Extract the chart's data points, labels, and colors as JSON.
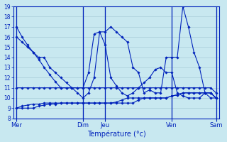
{
  "xlabel": "Température (°c)",
  "background_color": "#c8e8f0",
  "grid_color": "#a8ccd8",
  "line_color": "#0022bb",
  "tick_label_color": "#0022bb",
  "xlabel_color": "#0022bb",
  "ylim": [
    8,
    19
  ],
  "yticks": [
    8,
    9,
    10,
    11,
    12,
    13,
    14,
    15,
    16,
    17,
    18,
    19
  ],
  "day_labels": [
    "Mer",
    "Dim",
    "Jeu",
    "Ven",
    "Sam"
  ],
  "day_positions": [
    0,
    12,
    16,
    28,
    36
  ],
  "num_points": 37,
  "lines": [
    [
      17,
      16,
      15.2,
      14.5,
      13.8,
      13,
      12.3,
      11.6,
      11,
      11,
      11,
      11,
      11,
      12.5,
      16.3,
      16.5,
      15.2,
      12,
      11.2,
      10.5,
      10.2,
      10.5,
      11,
      11.5,
      12,
      12.8,
      13,
      12.5,
      12.5,
      10.5,
      10.2,
      10,
      10,
      10,
      10.5,
      10.5,
      10
    ],
    [
      11,
      11,
      11,
      11,
      11,
      11,
      11,
      11,
      11,
      11,
      11,
      11,
      11,
      11,
      11,
      11,
      11,
      11,
      11,
      11,
      11,
      11,
      11,
      11,
      11,
      11,
      11,
      11,
      11,
      11,
      11,
      11,
      11,
      11,
      11,
      11,
      10.5
    ],
    [
      9,
      9.2,
      9.3,
      9.4,
      9.4,
      9.5,
      9.5,
      9.5,
      9.5,
      9.5,
      9.5,
      9.5,
      9.5,
      9.5,
      9.5,
      9.5,
      9.5,
      9.5,
      9.6,
      9.8,
      10,
      10,
      10,
      10,
      10,
      10,
      10,
      10,
      10.2,
      10.3,
      10.5,
      10.5,
      10.5,
      10.5,
      10.5,
      10.5,
      10
    ],
    [
      9,
      9,
      9,
      9,
      9.2,
      9.3,
      9.4,
      9.4,
      9.5,
      9.5,
      9.5,
      9.5,
      9.5,
      9.5,
      9.5,
      9.5,
      9.5,
      9.5,
      9.5,
      9.5,
      9.5,
      9.5,
      9.8,
      10,
      10,
      10,
      10,
      10,
      10.2,
      10.3,
      10.5,
      10.5,
      10.5,
      10.5,
      10.5,
      10.5,
      10
    ],
    [
      16,
      15.5,
      15,
      14.5,
      14,
      14,
      13,
      12.5,
      12,
      11.5,
      11,
      10.5,
      10,
      10.5,
      12,
      16.5,
      16.5,
      17,
      16.5,
      16,
      15.5,
      13,
      12.5,
      10.5,
      10.8,
      10.5,
      10.5,
      14,
      14,
      14,
      19,
      17,
      14.5,
      13,
      10.5,
      10,
      10
    ]
  ]
}
